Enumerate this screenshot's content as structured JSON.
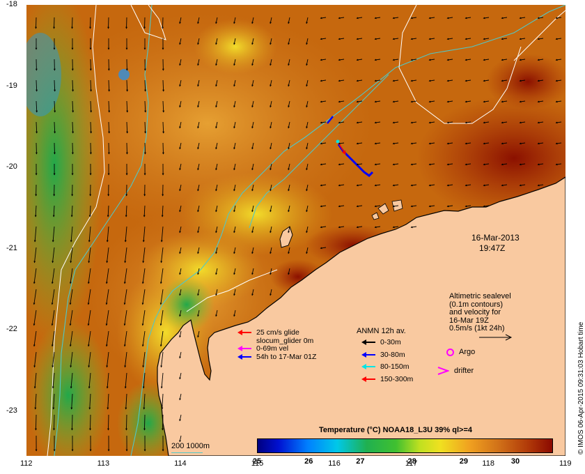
{
  "map": {
    "date": "16-Mar-2013",
    "time": "19:47Z",
    "lat_labels": [
      "-18",
      "-19",
      "-20",
      "-21",
      "-22",
      "-23"
    ],
    "lon_labels": [
      "112",
      "113",
      "114",
      "115",
      "116",
      "117",
      "118",
      "119"
    ],
    "lat_range": [
      -23.55,
      -18
    ],
    "lon_range": [
      112,
      119
    ]
  },
  "altimetry": {
    "line1": "Altimetric sealevel",
    "line2": "(0.1m contours)",
    "line3": "and velocity for",
    "line4": "16-Mar 19Z",
    "scale": "0.5m/s (1kt 24h)"
  },
  "glider_legend": {
    "item1": "25 cm/s glide",
    "item2": "slocum_glider 0m",
    "item3": "0-69m vel",
    "item4": "54h to 17-Mar 01Z",
    "colors": [
      "#ff0000",
      "#ff00ff",
      "#0000ff"
    ]
  },
  "anmn_legend": {
    "title": "ANMN 12h av.",
    "items": [
      {
        "label": "0-30m",
        "color": "#000000"
      },
      {
        "label": "30-80m",
        "color": "#0000ff"
      },
      {
        "label": "80-150m",
        "color": "#00e5e5"
      },
      {
        "label": "150-300m",
        "color": "#ff0000"
      }
    ]
  },
  "markers": {
    "argo": "Argo",
    "drifter": "drifter",
    "marker_color": "#ff00ff"
  },
  "depth_legend": {
    "label": "200  1000m",
    "color": "#4fc8c8"
  },
  "colorbar": {
    "title": "Temperature (°C) NOAA18_L3U 39% ql>=4",
    "ticks": [
      "25",
      "26",
      "27",
      "28",
      "29",
      "30"
    ],
    "range": [
      25,
      30.7
    ]
  },
  "credit": "© IMOS 06-Apr-2015 09:31:03 Hobart time",
  "colors": {
    "land": "#f9c9a0",
    "sst_warm": "#c0620a",
    "sst_hot": "#8b1000",
    "sst_cool": "#f0c020",
    "sst_cold": "#30b040"
  }
}
